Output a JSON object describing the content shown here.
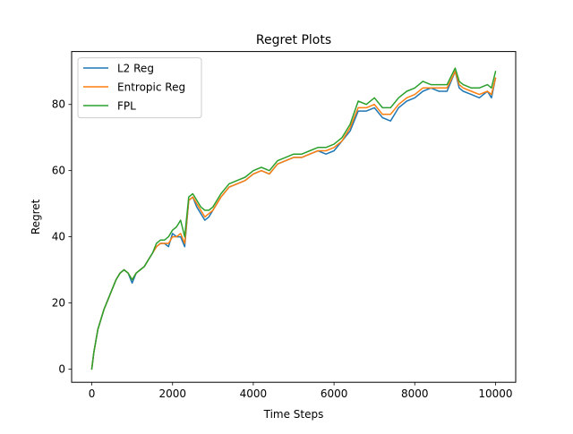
{
  "chart_data": {
    "type": "line",
    "title": "Regret Plots",
    "xlabel": "Time Steps",
    "ylabel": "Regret",
    "xlim": [
      -500,
      10500
    ],
    "ylim": [
      -4,
      96
    ],
    "xticks": [
      0,
      2000,
      4000,
      6000,
      8000,
      10000
    ],
    "xtick_labels": [
      "0",
      "2000",
      "4000",
      "6000",
      "8000",
      "10000"
    ],
    "yticks": [
      0,
      20,
      40,
      60,
      80
    ],
    "ytick_labels": [
      "0",
      "20",
      "40",
      "60",
      "80"
    ],
    "grid": false,
    "legend_position": "top-left",
    "x": [
      0,
      50,
      150,
      300,
      400,
      500,
      600,
      700,
      800,
      900,
      1000,
      1100,
      1200,
      1300,
      1400,
      1500,
      1600,
      1700,
      1800,
      1900,
      2000,
      2100,
      2200,
      2300,
      2400,
      2500,
      2600,
      2700,
      2800,
      2900,
      3000,
      3200,
      3400,
      3600,
      3800,
      4000,
      4200,
      4400,
      4600,
      4800,
      5000,
      5200,
      5400,
      5600,
      5800,
      6000,
      6200,
      6400,
      6600,
      6800,
      7000,
      7200,
      7400,
      7600,
      7800,
      8000,
      8200,
      8400,
      8600,
      8800,
      9000,
      9100,
      9200,
      9400,
      9600,
      9800,
      9900,
      10000
    ],
    "series": [
      {
        "name": "L2 Reg",
        "color": "#1f77b4",
        "values": [
          0,
          5,
          12,
          18,
          21,
          24,
          27,
          29,
          30,
          29,
          26,
          29,
          30,
          31,
          33,
          35,
          37,
          38,
          38,
          37,
          41,
          40,
          40,
          37,
          51,
          52,
          49,
          47,
          45,
          46,
          48,
          52,
          55,
          56,
          57,
          59,
          60,
          59,
          62,
          63,
          64,
          64,
          65,
          66,
          65,
          66,
          69,
          72,
          78,
          78,
          79,
          76,
          75,
          79,
          81,
          82,
          84,
          85,
          84,
          84,
          90,
          85,
          84,
          83,
          82,
          84,
          82,
          88
        ]
      },
      {
        "name": "Entropic Reg",
        "color": "#ff7f0e",
        "values": [
          0,
          5,
          12,
          18,
          21,
          24,
          27,
          29,
          30,
          29,
          27,
          29,
          30,
          31,
          33,
          35,
          37,
          38,
          38,
          38,
          40,
          40,
          41,
          38,
          51,
          52,
          50,
          48,
          46,
          47,
          48,
          52,
          55,
          56,
          57,
          59,
          60,
          59,
          62,
          63,
          64,
          64,
          65,
          66,
          66,
          67,
          69,
          73,
          79,
          79,
          80,
          77,
          77,
          80,
          82,
          83,
          85,
          85,
          85,
          85,
          90,
          86,
          85,
          84,
          83,
          84,
          83,
          88
        ]
      },
      {
        "name": "FPL",
        "color": "#2ca02c",
        "values": [
          0,
          5,
          12,
          18,
          21,
          24,
          27,
          29,
          30,
          29,
          27,
          29,
          30,
          31,
          33,
          35,
          38,
          39,
          39,
          40,
          42,
          43,
          45,
          40,
          52,
          53,
          51,
          49,
          48,
          48,
          49,
          53,
          56,
          57,
          58,
          60,
          61,
          60,
          63,
          64,
          65,
          65,
          66,
          67,
          67,
          68,
          70,
          74,
          81,
          80,
          82,
          79,
          79,
          82,
          84,
          85,
          87,
          86,
          86,
          86,
          91,
          87,
          86,
          85,
          85,
          86,
          85,
          90
        ]
      }
    ]
  }
}
